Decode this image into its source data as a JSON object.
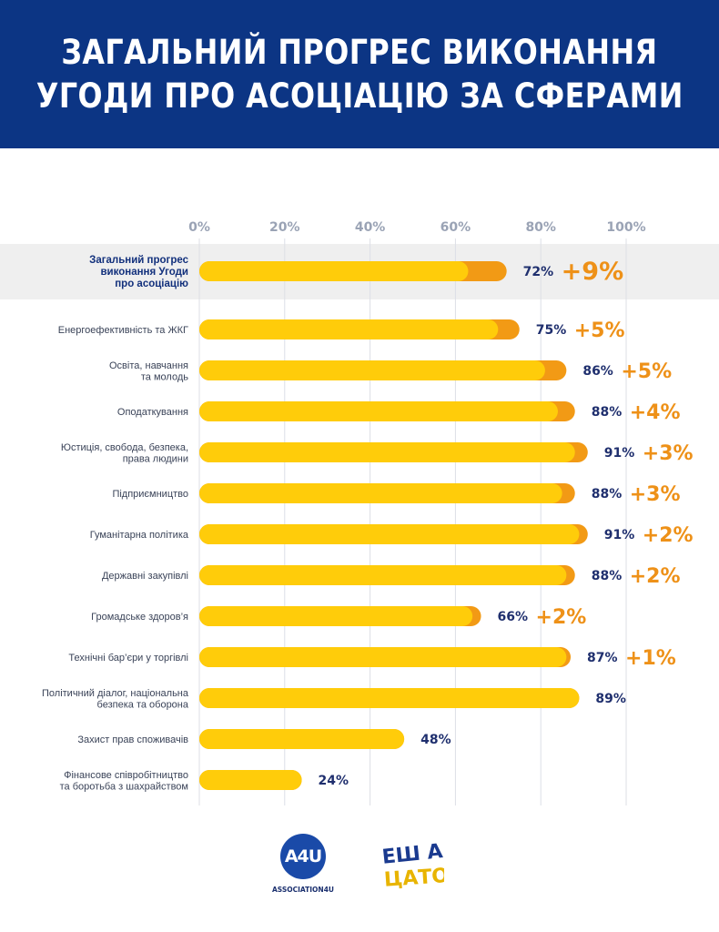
{
  "header": {
    "title_line1": "ЗАГАЛЬНИЙ ПРОГРЕС ВИКОНАННЯ",
    "title_line2": "УГОДИ ПРО АСОЦІАЦІЮ ЗА СФЕРАМИ"
  },
  "colors": {
    "header_bg": "#0c3584",
    "bar_base": "#ffcc0a",
    "bar_change": "#f29a15",
    "value_text": "#1f2f6e",
    "change_text": "#ee9118",
    "highlight_row": "#efefef"
  },
  "chart_data": {
    "type": "bar",
    "orientation": "horizontal",
    "stacked": true,
    "xlim": [
      0,
      100
    ],
    "x_ticks": [
      "0%",
      "20%",
      "40%",
      "60%",
      "80%",
      "100%"
    ],
    "grid": true,
    "categories": [
      {
        "lines": [
          "Загальний прогрес",
          "виконання Угоди",
          "про асоціацію"
        ],
        "highlight": true
      },
      {
        "lines": [
          "Енергоефективність та ЖКГ"
        ]
      },
      {
        "lines": [
          "Освіта, навчання",
          "та молодь"
        ]
      },
      {
        "lines": [
          "Оподаткування"
        ]
      },
      {
        "lines": [
          "Юстиція, свобода, безпека,",
          "права людини"
        ]
      },
      {
        "lines": [
          "Підприємництво"
        ]
      },
      {
        "lines": [
          "Гуманітарна політика"
        ]
      },
      {
        "lines": [
          "Державні закупівлі"
        ]
      },
      {
        "lines": [
          "Громадське здоров’я"
        ]
      },
      {
        "lines": [
          "Технічні бар’єри у торгівлі"
        ]
      },
      {
        "lines": [
          "Політичний діалог, національна",
          "безпека та оборона"
        ]
      },
      {
        "lines": [
          "Захист прав споживачів"
        ]
      },
      {
        "lines": [
          "Фінансове співробітництво",
          "та боротьба з шахрайством"
        ]
      }
    ],
    "values": [
      72,
      75,
      86,
      88,
      91,
      88,
      91,
      88,
      66,
      87,
      89,
      48,
      24
    ],
    "value_labels": [
      "72%",
      "75%",
      "86%",
      "88%",
      "91%",
      "88%",
      "91%",
      "88%",
      "66%",
      "87%",
      "89%",
      "48%",
      "24%"
    ],
    "changes": [
      9,
      5,
      5,
      4,
      3,
      3,
      2,
      2,
      2,
      1,
      0,
      0,
      0
    ],
    "change_labels": [
      "+9%",
      "+5%",
      "+5%",
      "+4%",
      "+3%",
      "+3%",
      "+2%",
      "+2%",
      "+2%",
      "+1%",
      "",
      "",
      ""
    ]
  },
  "logos": {
    "a4u_mark": "A4U",
    "a4u_name": "ASSOCIATION4U",
    "ewna_line1": "ЕШ А",
    "ewna_line2": "ЦАТО"
  }
}
